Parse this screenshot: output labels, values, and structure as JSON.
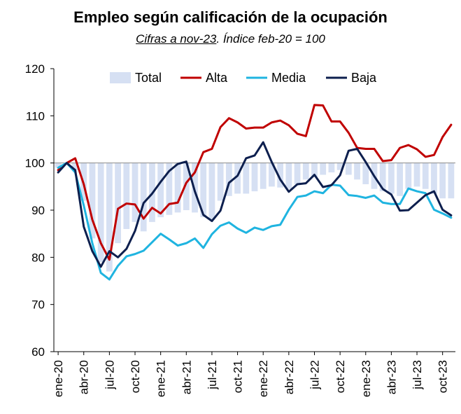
{
  "chart_data": {
    "type": "line",
    "title": "Empleo según calificación de la ocupación",
    "subtitle_underlined": "Cifras a nov-23",
    "subtitle_rest": ". Índice feb-20 = 100",
    "ylim": [
      60,
      120
    ],
    "yticks": [
      60,
      70,
      80,
      90,
      100,
      110,
      120
    ],
    "reference_line": 100,
    "x_labels": [
      "ene-20",
      "feb-20",
      "mar-20",
      "abr-20",
      "may-20",
      "jun-20",
      "jul-20",
      "ago-20",
      "sep-20",
      "oct-20",
      "nov-20",
      "dic-20",
      "ene-21",
      "feb-21",
      "mar-21",
      "abr-21",
      "may-21",
      "jun-21",
      "jul-21",
      "ago-21",
      "sep-21",
      "oct-21",
      "nov-21",
      "dic-21",
      "ene-22",
      "feb-22",
      "mar-22",
      "abr-22",
      "may-22",
      "jun-22",
      "jul-22",
      "ago-22",
      "sep-22",
      "oct-22",
      "nov-22",
      "dic-22",
      "ene-23",
      "feb-23",
      "mar-23",
      "abr-23",
      "may-23",
      "jun-23",
      "jul-23",
      "ago-23",
      "sep-23",
      "oct-23",
      "nov-23"
    ],
    "visible_ticks": [
      "ene-20",
      "abr-20",
      "jul-20",
      "oct-20",
      "ene-21",
      "abr-21",
      "jul-21",
      "oct-21",
      "ene-22",
      "abr-22",
      "jul-22",
      "oct-22",
      "ene-23",
      "abr-23",
      "jul-23",
      "oct-23"
    ],
    "legend_position": "top",
    "series": [
      {
        "name": "Total",
        "kind": "bar",
        "color": "#d6e0f3",
        "values": [
          99.0,
          100.0,
          98.5,
          92.0,
          84.0,
          79.0,
          77.0,
          83.0,
          86.0,
          87.5,
          85.5,
          87.5,
          88.5,
          89.0,
          89.5,
          90.0,
          89.5,
          88.5,
          88.0,
          92.0,
          93.0,
          93.5,
          93.5,
          94.0,
          94.5,
          95.0,
          94.8,
          94.5,
          95.5,
          96.5,
          97.0,
          97.5,
          98.0,
          98.5,
          97.5,
          96.5,
          95.5,
          94.5,
          94.0,
          93.5,
          93.0,
          94.5,
          95.0,
          94.5,
          93.5,
          92.5,
          92.5
        ]
      },
      {
        "name": "Alta",
        "kind": "line",
        "color": "#c00000",
        "values": [
          98.5,
          100.0,
          101.0,
          95.5,
          88.0,
          83.0,
          79.5,
          90.3,
          91.4,
          91.2,
          88.2,
          90.5,
          89.3,
          91.3,
          91.6,
          95.8,
          98.0,
          102.3,
          103.0,
          107.6,
          109.5,
          108.6,
          107.3,
          107.5,
          107.5,
          108.6,
          109.0,
          108.0,
          106.2,
          105.7,
          112.3,
          112.2,
          108.8,
          108.8,
          106.4,
          103.2,
          103.0,
          103.0,
          100.4,
          100.6,
          103.2,
          103.8,
          102.9,
          101.3,
          101.7,
          105.5,
          108.1
        ]
      },
      {
        "name": "Media",
        "kind": "line",
        "color": "#1fb4e0",
        "values": [
          99.0,
          100.0,
          98.0,
          91.0,
          83.0,
          76.7,
          75.3,
          78.2,
          80.2,
          80.7,
          81.4,
          83.2,
          85.0,
          83.8,
          82.5,
          83.0,
          84.0,
          82.0,
          84.9,
          86.7,
          87.4,
          86.1,
          85.2,
          86.3,
          85.8,
          86.6,
          86.9,
          90.1,
          92.8,
          93.1,
          94.0,
          93.6,
          95.4,
          95.2,
          93.2,
          93.0,
          92.6,
          93.1,
          91.6,
          91.3,
          91.3,
          94.6,
          94.0,
          93.6,
          90.1,
          89.3,
          88.4
        ]
      },
      {
        "name": "Baja",
        "kind": "line",
        "color": "#0d1f4e",
        "values": [
          98.0,
          100.0,
          98.5,
          86.5,
          81.3,
          78.0,
          81.3,
          80.0,
          81.8,
          85.6,
          91.5,
          93.5,
          96.0,
          98.3,
          99.8,
          100.3,
          94.0,
          89.0,
          87.7,
          89.9,
          95.8,
          97.3,
          101.0,
          101.6,
          104.4,
          100.2,
          96.5,
          93.9,
          95.5,
          95.7,
          97.5,
          94.9,
          95.3,
          97.4,
          102.6,
          103.0,
          100.2,
          97.2,
          94.5,
          93.3,
          89.9,
          90.0,
          91.6,
          93.2,
          94.0,
          90.1,
          88.9
        ]
      }
    ]
  }
}
